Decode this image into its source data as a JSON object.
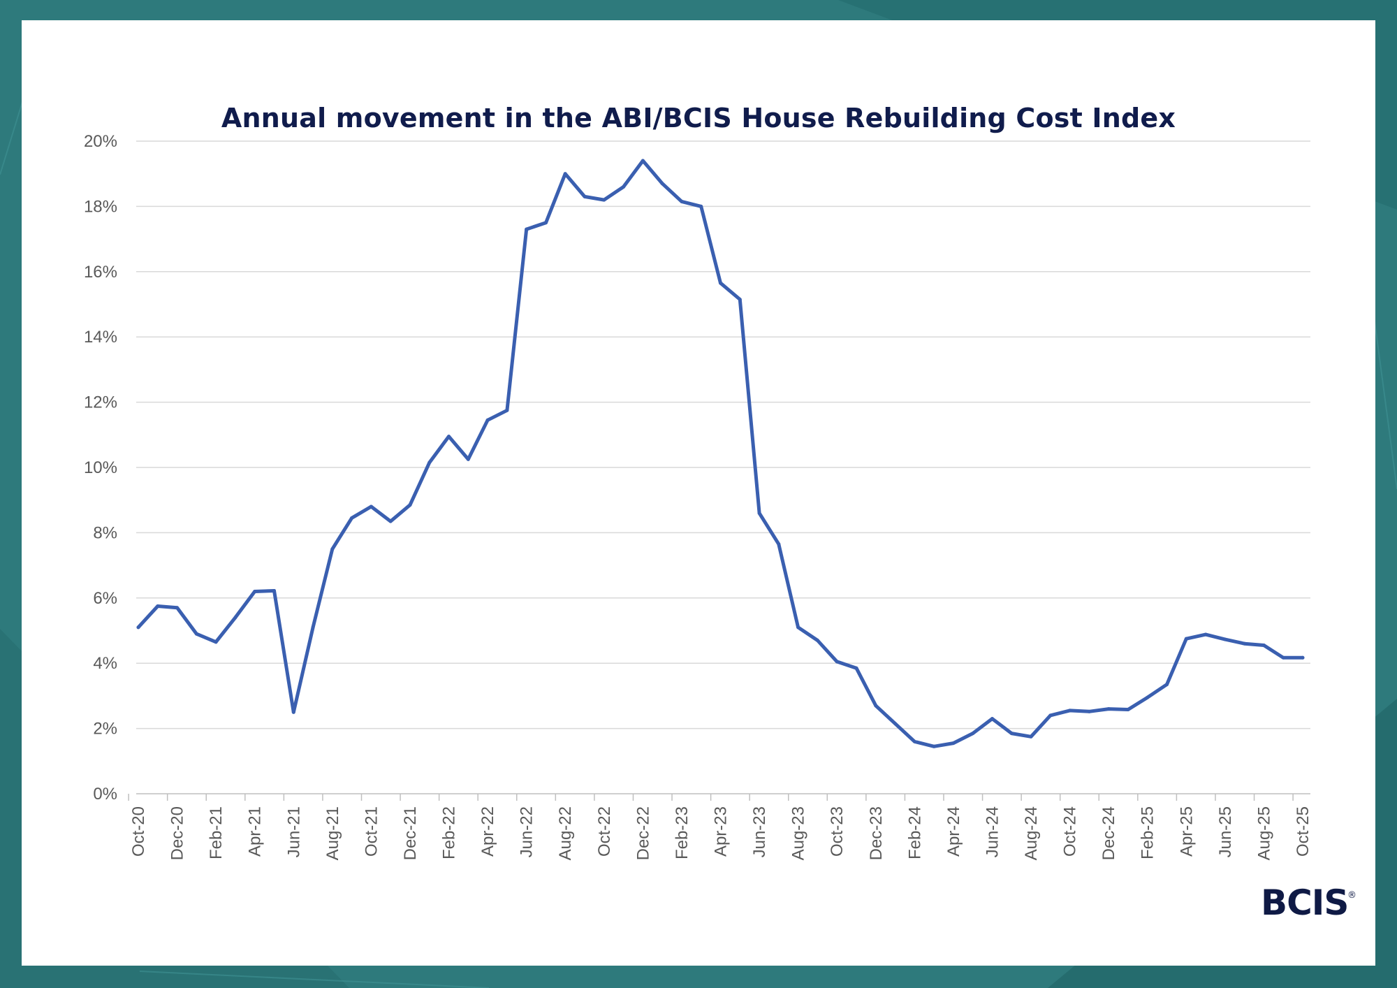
{
  "colors": {
    "background": "#2e7a7c",
    "card": "#ffffff",
    "line": "#3a5fb0",
    "grid": "#d9d9d9",
    "axis": "#bfbfbf",
    "tick_text": "#595959",
    "title": "#101c4c",
    "logo": "#0f1a45"
  },
  "logo": {
    "text": "BCIS",
    "mark": "®"
  },
  "chart_data": {
    "type": "line",
    "title": "Annual movement in the ABI/BCIS House Rebuilding Cost Index",
    "xlabel": "",
    "ylabel": "",
    "ylim": [
      0,
      20
    ],
    "ytick_values": [
      0,
      2,
      4,
      6,
      8,
      10,
      12,
      14,
      16,
      18,
      20
    ],
    "ytick_labels": [
      "0%",
      "2%",
      "4%",
      "6%",
      "8%",
      "10%",
      "12%",
      "14%",
      "16%",
      "18%",
      "20%"
    ],
    "grid": true,
    "legend": "none",
    "x_tick_labels": [
      "Oct-20",
      "Dec-20",
      "Feb-21",
      "Apr-21",
      "Jun-21",
      "Aug-21",
      "Oct-21",
      "Dec-21",
      "Feb-22",
      "Apr-22",
      "Jun-22",
      "Aug-22",
      "Oct-22",
      "Dec-22",
      "Feb-23",
      "Apr-23",
      "Jun-23",
      "Aug-23",
      "Oct-23",
      "Dec-23",
      "Feb-24",
      "Apr-24",
      "Jun-24",
      "Aug-24",
      "Oct-24",
      "Dec-24",
      "Feb-25",
      "Apr-25",
      "Jun-25",
      "Aug-25",
      "Oct-25"
    ],
    "series": [
      {
        "name": "Annual movement",
        "values": [
          5.1,
          5.75,
          5.7,
          4.9,
          4.65,
          5.4,
          6.2,
          6.22,
          2.5,
          5.1,
          7.5,
          8.45,
          8.8,
          8.35,
          8.85,
          10.15,
          10.95,
          10.25,
          11.45,
          11.75,
          17.3,
          17.5,
          19.0,
          18.3,
          18.2,
          18.6,
          19.4,
          18.7,
          18.15,
          18.0,
          15.65,
          15.15,
          8.6,
          7.65,
          5.1,
          4.7,
          4.05,
          3.85,
          2.7,
          2.15,
          1.6,
          1.45,
          1.55,
          1.85,
          2.3,
          1.85,
          1.75,
          2.4,
          2.55,
          2.52,
          2.6,
          2.58,
          2.95,
          3.35,
          4.75,
          4.88,
          4.73,
          4.6,
          4.55,
          4.17,
          4.17
        ]
      }
    ]
  }
}
